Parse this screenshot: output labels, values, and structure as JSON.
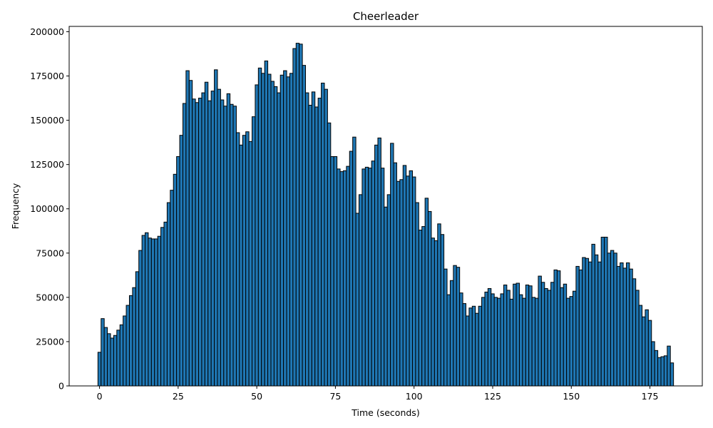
{
  "chart_data": {
    "type": "histogram",
    "title": "Cheerleader",
    "x_label": "Time (seconds)",
    "y_label": "Frequency",
    "color": "#1f77b4",
    "edgecolor": "#000000",
    "bins": [
      -0.5,
      0.5,
      1.5,
      2.5,
      3.5,
      4.5,
      5.5,
      6.5,
      7.5,
      8.5,
      9.5,
      10.5,
      11.5,
      12.5,
      13.5,
      14.5,
      15.5,
      16.5,
      17.5,
      18.5,
      19.5,
      20.5,
      21.5,
      22.5,
      23.5,
      24.5,
      25.5,
      26.5,
      27.5,
      28.5,
      29.5,
      30.5,
      31.5,
      32.5,
      33.5,
      34.5,
      35.5,
      36.5,
      37.5,
      38.5,
      39.5,
      40.5,
      41.5,
      42.5,
      43.5,
      44.5,
      45.5,
      46.5,
      47.5,
      48.5,
      49.5,
      50.5,
      51.5,
      52.5,
      53.5,
      54.5,
      55.5,
      56.5,
      57.5,
      58.5,
      59.5,
      60.5,
      61.5,
      62.5,
      63.5,
      64.5,
      65.5,
      66.5,
      67.5,
      68.5,
      69.5,
      70.5,
      71.5,
      72.5,
      73.5,
      74.5,
      75.5,
      76.5,
      77.5,
      78.5,
      79.5,
      80.5,
      81.5,
      82.5,
      83.5,
      84.5,
      85.5,
      86.5,
      87.5,
      88.5,
      89.5,
      90.5,
      91.5,
      92.5,
      93.5,
      94.5,
      95.5,
      96.5,
      97.5,
      98.5,
      99.5,
      100.5,
      101.5,
      102.5,
      103.5,
      104.5,
      105.5,
      106.5,
      107.5,
      108.5,
      109.5,
      110.5,
      111.5,
      112.5,
      113.5,
      114.5,
      115.5,
      116.5,
      117.5,
      118.5,
      119.5,
      120.5,
      121.5,
      122.5,
      123.5,
      124.5,
      125.5,
      126.5,
      127.5,
      128.5,
      129.5,
      130.5,
      131.5,
      132.5,
      133.5,
      134.5,
      135.5,
      136.5,
      137.5,
      138.5,
      139.5,
      140.5,
      141.5,
      142.5,
      143.5,
      144.5,
      145.5,
      146.5,
      147.5,
      148.5,
      149.5,
      150.5,
      151.5,
      152.5,
      153.5,
      154.5,
      155.5,
      156.5,
      157.5,
      158.5,
      159.5,
      160.5,
      161.5,
      162.5,
      163.5,
      164.5,
      165.5,
      166.5,
      167.5,
      168.5,
      169.5,
      170.5,
      171.5,
      172.5,
      173.5,
      174.5,
      175.5,
      176.5,
      177.5,
      178.5,
      179.5,
      180.5,
      181.5,
      182.5
    ],
    "values": [
      19000,
      38000,
      33000,
      29500,
      27000,
      28500,
      31500,
      34500,
      39500,
      45500,
      51000,
      55500,
      64500,
      76500,
      85000,
      86500,
      83500,
      83000,
      83000,
      84500,
      89500,
      92500,
      103500,
      110500,
      119500,
      129500,
      141500,
      159500,
      178000,
      172500,
      162000,
      160000,
      162500,
      165500,
      171500,
      161000,
      166500,
      178500,
      167500,
      161500,
      158000,
      165000,
      159000,
      158000,
      143000,
      136000,
      141500,
      143500,
      138000,
      152000,
      170000,
      179500,
      176500,
      183500,
      176000,
      172000,
      169000,
      165500,
      175500,
      178000,
      174500,
      176500,
      190500,
      193500,
      193000,
      181000,
      165500,
      158500,
      166000,
      157500,
      162500,
      171000,
      167500,
      148500,
      129500,
      129500,
      122500,
      121000,
      121500,
      124000,
      132500,
      140500,
      97500,
      108000,
      122500,
      123500,
      123000,
      127000,
      136000,
      140000,
      123000,
      101000,
      108000,
      137000,
      126000,
      115500,
      116500,
      124500,
      118500,
      121500,
      118000,
      103500,
      88000,
      90000,
      106000,
      98500,
      83500,
      82000,
      91500,
      85500,
      66000,
      51500,
      59500,
      68000,
      67000,
      52500,
      46500,
      39500,
      44000,
      45000,
      41000,
      45000,
      50000,
      53000,
      55000,
      52000,
      50000,
      49500,
      52000,
      57000,
      54000,
      49000,
      57500,
      58000,
      51500,
      49500,
      57000,
      56500,
      50000,
      49500,
      62000,
      58500,
      55000,
      54000,
      58500,
      65500,
      65000,
      55500,
      57500,
      49500,
      50500,
      53500,
      67500,
      65500,
      72500,
      72000,
      70000,
      80000,
      74000,
      70000,
      84000,
      84000,
      75000,
      76500,
      75000,
      67500,
      69500,
      66500,
      69500,
      66000,
      60500,
      54000,
      45500,
      39000,
      43000,
      37000,
      25000,
      20000,
      16000,
      16500,
      17000,
      22500,
      13000
    ],
    "xlim": [
      -9.65,
      191.65
    ],
    "xticks": [
      0,
      25,
      50,
      75,
      100,
      125,
      150,
      175
    ],
    "ylim": [
      0,
      203000
    ],
    "yticks": [
      0,
      25000,
      50000,
      75000,
      100000,
      125000,
      150000,
      175000,
      200000
    ]
  }
}
